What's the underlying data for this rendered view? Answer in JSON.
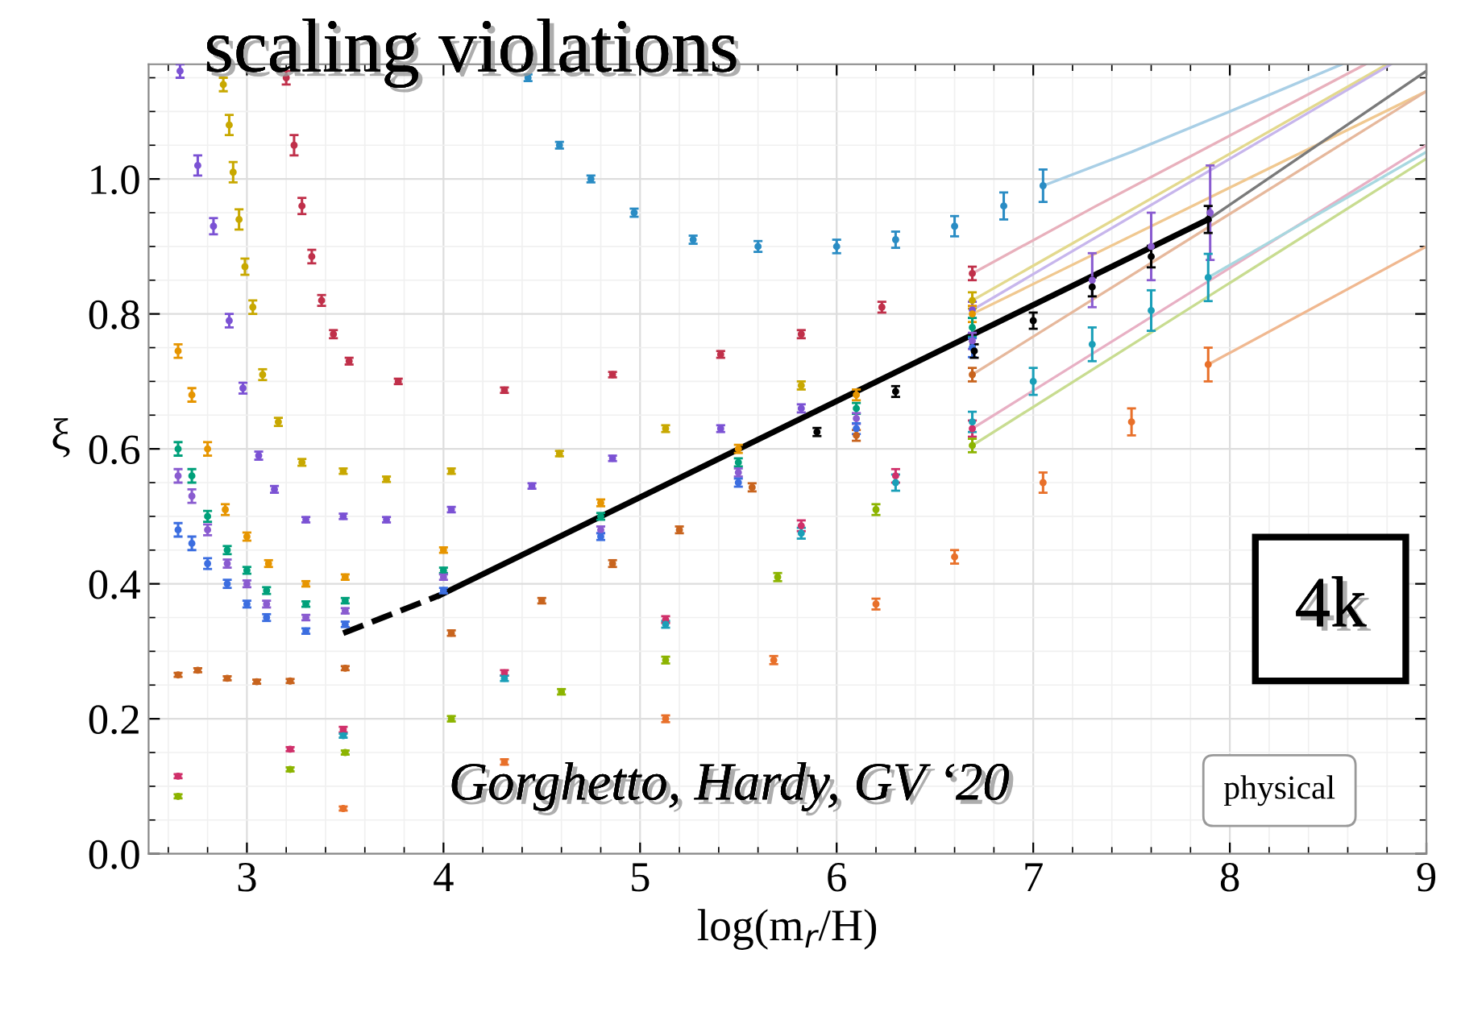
{
  "chart_data": {
    "type": "scatter",
    "title": "scaling violations",
    "xlabel": "log(m$_{r}$/H)",
    "ylabel": "ξ",
    "annotations": [
      "4k",
      "Gorghetto, Hardy, GV ‘20",
      "physical"
    ],
    "xlim": [
      2.5,
      9
    ],
    "ylim": [
      0,
      1.17
    ],
    "xticks": [
      3,
      4,
      5,
      6,
      7,
      8,
      9
    ],
    "yticks": [
      {
        "value": 0,
        "label": "0.0"
      },
      {
        "value": 0.2,
        "label": "0.2"
      },
      {
        "value": 0.4,
        "label": "0.4"
      },
      {
        "value": 0.6,
        "label": "0.6"
      },
      {
        "value": 0.8,
        "label": "0.8"
      },
      {
        "value": 1.0,
        "label": "1.0"
      }
    ],
    "grid": true,
    "marker": "circle",
    "series": [
      {
        "type": "line",
        "marker": "none",
        "color": "#a9cfe6",
        "x": [
          7.05,
          7.5,
          8.0,
          8.57
        ],
        "values": [
          0.99,
          1.04,
          1.1,
          1.17
        ]
      },
      {
        "type": "line",
        "marker": "none",
        "color": "#e8b0bc",
        "x": [
          6.69,
          7.32,
          8.69
        ],
        "values": [
          0.86,
          0.96,
          1.17
        ]
      },
      {
        "type": "line",
        "marker": "none",
        "color": "#e3d98e",
        "x": [
          6.69,
          8.8
        ],
        "values": [
          0.82,
          1.17
        ]
      },
      {
        "type": "line",
        "marker": "none",
        "color": "#c7b6ec",
        "x": [
          6.69,
          8.82
        ],
        "values": [
          0.806,
          1.17
        ]
      },
      {
        "type": "line",
        "marker": "none",
        "color": "#f0c890",
        "x": [
          6.69,
          9
        ],
        "values": [
          0.8,
          1.13
        ]
      },
      {
        "type": "line",
        "marker": "none",
        "color": "#e6b89c",
        "x": [
          6.69,
          9
        ],
        "values": [
          0.71,
          1.13
        ]
      },
      {
        "type": "line",
        "marker": "none",
        "color": "#e8b0c4",
        "x": [
          6.69,
          9
        ],
        "values": [
          0.63,
          1.05
        ]
      },
      {
        "type": "line",
        "marker": "none",
        "color": "#a8d8e0",
        "x": [
          7.89,
          9
        ],
        "values": [
          0.854,
          1.04
        ]
      },
      {
        "type": "line",
        "marker": "none",
        "color": "#c8dc90",
        "x": [
          6.69,
          9
        ],
        "values": [
          0.605,
          1.03
        ]
      },
      {
        "type": "line",
        "marker": "none",
        "color": "#f0b890",
        "x": [
          7.89,
          9
        ],
        "values": [
          0.725,
          0.9
        ]
      },
      {
        "type": "line",
        "marker": "none",
        "color": "#7a7a7a",
        "x": [
          7.89,
          9
        ],
        "values": [
          0.94,
          1.16
        ]
      },
      {
        "color": "#2a8cc4",
        "x": [
          4.43,
          4.59,
          4.75,
          4.97,
          5.27,
          5.6,
          6.0,
          6.3,
          6.6,
          6.85,
          7.05
        ],
        "values": [
          1.15,
          1.05,
          1.0,
          0.95,
          0.91,
          0.9,
          0.9,
          0.91,
          0.93,
          0.96,
          0.99
        ],
        "errors": [
          0.005,
          0.005,
          0.005,
          0.006,
          0.006,
          0.008,
          0.01,
          0.012,
          0.015,
          0.02,
          0.024
        ]
      },
      {
        "color": "#c0304a",
        "x": [
          3.2,
          3.24,
          3.28,
          3.33,
          3.38,
          3.44,
          3.52,
          3.77,
          4.31,
          4.86,
          5.41,
          5.82,
          6.23,
          6.69
        ],
        "values": [
          1.15,
          1.05,
          0.96,
          0.885,
          0.82,
          0.77,
          0.73,
          0.7,
          0.687,
          0.71,
          0.74,
          0.77,
          0.81,
          0.86
        ],
        "errors": [
          0.01,
          0.015,
          0.012,
          0.01,
          0.008,
          0.006,
          0.005,
          0.004,
          0.004,
          0.004,
          0.005,
          0.006,
          0.008,
          0.01
        ]
      },
      {
        "color": "#c8a800",
        "x": [
          2.88,
          2.91,
          2.93,
          2.96,
          2.99,
          3.03,
          3.08,
          3.16,
          3.28,
          3.49,
          3.71,
          4.04,
          4.59,
          5.13,
          5.82,
          6.69
        ],
        "values": [
          1.14,
          1.08,
          1.01,
          0.94,
          0.87,
          0.81,
          0.71,
          0.64,
          0.58,
          0.567,
          0.555,
          0.567,
          0.593,
          0.63,
          0.694,
          0.82
        ],
        "errors": [
          0.01,
          0.015,
          0.015,
          0.015,
          0.012,
          0.01,
          0.008,
          0.006,
          0.005,
          0.004,
          0.004,
          0.004,
          0.004,
          0.005,
          0.006,
          0.012
        ]
      },
      {
        "color": "#7b52d4",
        "x": [
          2.66,
          2.75,
          2.83,
          2.91,
          2.98,
          3.06,
          3.14,
          3.3,
          3.49,
          3.71,
          4.04,
          4.45,
          4.86,
          5.41,
          5.82,
          6.69
        ],
        "values": [
          1.16,
          1.02,
          0.93,
          0.79,
          0.69,
          0.59,
          0.54,
          0.495,
          0.5,
          0.495,
          0.51,
          0.545,
          0.586,
          0.63,
          0.66,
          0.806
        ],
        "errors": [
          0.01,
          0.015,
          0.012,
          0.01,
          0.008,
          0.006,
          0.005,
          0.004,
          0.004,
          0.004,
          0.004,
          0.004,
          0.004,
          0.005,
          0.006,
          0.012
        ]
      },
      {
        "color": "#e69500",
        "x": [
          2.65,
          2.72,
          2.8,
          2.89,
          3.0,
          3.11,
          3.3,
          3.5,
          4.0,
          4.8,
          5.5,
          6.1,
          6.69
        ],
        "values": [
          0.745,
          0.68,
          0.6,
          0.51,
          0.47,
          0.43,
          0.4,
          0.41,
          0.45,
          0.52,
          0.6,
          0.68,
          0.8
        ],
        "errors": [
          0.01,
          0.01,
          0.01,
          0.008,
          0.006,
          0.005,
          0.004,
          0.004,
          0.004,
          0.005,
          0.006,
          0.008,
          0.012
        ]
      },
      {
        "color": "#00a07a",
        "x": [
          2.65,
          2.72,
          2.8,
          2.9,
          3.0,
          3.1,
          3.3,
          3.5,
          4.0,
          4.8,
          5.5,
          6.1,
          6.69
        ],
        "values": [
          0.6,
          0.56,
          0.5,
          0.45,
          0.42,
          0.39,
          0.37,
          0.375,
          0.42,
          0.5,
          0.58,
          0.66,
          0.78
        ],
        "errors": [
          0.01,
          0.01,
          0.008,
          0.006,
          0.005,
          0.005,
          0.004,
          0.004,
          0.004,
          0.005,
          0.006,
          0.008,
          0.014
        ]
      },
      {
        "color": "#8a5cd0",
        "x": [
          2.65,
          2.72,
          2.8,
          2.9,
          3.0,
          3.1,
          3.3,
          3.5,
          4.0,
          4.8,
          5.5,
          6.1,
          6.69,
          7.3,
          7.6,
          7.9
        ],
        "values": [
          0.56,
          0.53,
          0.48,
          0.43,
          0.4,
          0.37,
          0.35,
          0.36,
          0.41,
          0.48,
          0.565,
          0.645,
          0.76,
          0.85,
          0.9,
          0.95
        ],
        "errors": [
          0.01,
          0.01,
          0.008,
          0.006,
          0.005,
          0.005,
          0.004,
          0.004,
          0.004,
          0.005,
          0.006,
          0.008,
          0.012,
          0.04,
          0.05,
          0.07
        ]
      },
      {
        "color": "#3c6ee0",
        "x": [
          2.65,
          2.72,
          2.8,
          2.9,
          3.0,
          3.1,
          3.3,
          3.5,
          4.0,
          4.8,
          5.5,
          6.1,
          6.69
        ],
        "values": [
          0.48,
          0.46,
          0.43,
          0.4,
          0.37,
          0.35,
          0.33,
          0.34,
          0.39,
          0.47,
          0.55,
          0.63,
          0.75
        ],
        "errors": [
          0.01,
          0.01,
          0.008,
          0.006,
          0.005,
          0.005,
          0.004,
          0.004,
          0.004,
          0.005,
          0.006,
          0.008,
          0.014
        ]
      },
      {
        "type": "line",
        "marker": "none",
        "color": "#000000",
        "line_style": "dashed",
        "x": [
          3.49,
          3.98
        ],
        "values": [
          0.327,
          0.383
        ]
      },
      {
        "type": "line",
        "marker": "none",
        "color": "#000000",
        "x": [
          3.98,
          7.89
        ],
        "values": [
          0.383,
          0.94
        ]
      },
      {
        "color": "#000000",
        "x": [
          5.9,
          6.3,
          6.7,
          7.0,
          7.3,
          7.6,
          7.89
        ],
        "values": [
          0.625,
          0.685,
          0.745,
          0.79,
          0.84,
          0.885,
          0.94
        ],
        "errors": [
          0.006,
          0.008,
          0.01,
          0.012,
          0.014,
          0.016,
          0.02
        ]
      },
      {
        "color": "#c8641e",
        "x": [
          2.65,
          2.75,
          2.9,
          3.05,
          3.22,
          3.5,
          4.04,
          4.5,
          4.86,
          5.2,
          5.57,
          6.1,
          6.69
        ],
        "values": [
          0.265,
          0.272,
          0.26,
          0.255,
          0.256,
          0.275,
          0.327,
          0.375,
          0.43,
          0.48,
          0.543,
          0.62,
          0.71
        ],
        "errors": [
          0.003,
          0.003,
          0.003,
          0.003,
          0.003,
          0.003,
          0.004,
          0.004,
          0.005,
          0.005,
          0.006,
          0.008,
          0.01
        ]
      },
      {
        "color": "#d0306a",
        "x": [
          2.65,
          3.22,
          3.49,
          4.31,
          5.13,
          5.82,
          6.3,
          6.69
        ],
        "values": [
          0.115,
          0.155,
          0.184,
          0.268,
          0.347,
          0.486,
          0.56,
          0.63
        ],
        "errors": [
          0.003,
          0.003,
          0.004,
          0.004,
          0.005,
          0.008,
          0.01,
          0.012
        ]
      },
      {
        "color": "#1a9fb8",
        "x": [
          3.49,
          4.31,
          5.13,
          5.82,
          6.3,
          6.69,
          7.0,
          7.3,
          7.6,
          7.89
        ],
        "values": [
          0.175,
          0.26,
          0.34,
          0.475,
          0.55,
          0.64,
          0.7,
          0.755,
          0.805,
          0.854
        ],
        "errors": [
          0.003,
          0.004,
          0.005,
          0.008,
          0.012,
          0.015,
          0.02,
          0.025,
          0.03,
          0.035
        ]
      },
      {
        "color": "#8cb400",
        "x": [
          2.65,
          3.22,
          3.5,
          4.04,
          4.6,
          5.13,
          5.7,
          6.2,
          6.69
        ],
        "values": [
          0.085,
          0.125,
          0.15,
          0.2,
          0.24,
          0.287,
          0.41,
          0.51,
          0.605
        ],
        "errors": [
          0.003,
          0.003,
          0.003,
          0.004,
          0.004,
          0.005,
          0.006,
          0.008,
          0.01
        ]
      },
      {
        "color": "#e8702a",
        "x": [
          3.49,
          4.31,
          5.13,
          5.68,
          6.2,
          6.6,
          7.05,
          7.5,
          7.89
        ],
        "values": [
          0.067,
          0.136,
          0.2,
          0.287,
          0.37,
          0.44,
          0.55,
          0.64,
          0.725
        ],
        "errors": [
          0.003,
          0.004,
          0.005,
          0.006,
          0.008,
          0.01,
          0.015,
          0.02,
          0.025
        ]
      }
    ]
  }
}
